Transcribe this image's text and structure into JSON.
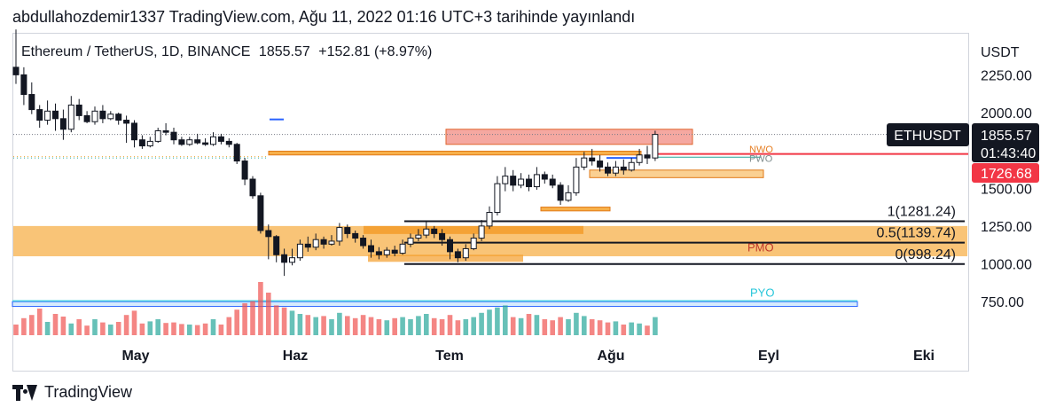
{
  "caption": "abdullahozdemir1337 TradingView.com, Ağu 11, 2022 01:16 UTC+3 tarihinde yayınlandı",
  "legend": {
    "symbol": "Ethereum / TetherUS, 1D, BINANCE",
    "last": "1855.57",
    "change": "+152.81 (+8.97%)"
  },
  "price_axis": {
    "currency": "USDT",
    "ticks": [
      "2250.00",
      "2000.00",
      "1750.00",
      "1500.00",
      "1250.00",
      "1000.00",
      "750.00"
    ]
  },
  "time_axis": {
    "labels": [
      "May",
      "Haz",
      "Tem",
      "Ağu",
      "Eyl",
      "Eki"
    ]
  },
  "price_tags": {
    "ticker": "ETHUSDT",
    "last": "1855.57",
    "countdown": "01:43:40",
    "red_level": "1726.68"
  },
  "fib_labels": [
    "1(1281.24)",
    "0.5(1139.74)",
    "0(998.24)"
  ],
  "zone_labels": {
    "pmo": "PMO",
    "pyo": "PYO",
    "nwo": "NWO",
    "pwo": "PWO"
  },
  "brand": {
    "name": "TradingView",
    "logo": "tradingview-logo-icon"
  },
  "colors": {
    "up": "#26a69a",
    "down": "#131722",
    "volume_up": "#26a69a",
    "volume_down": "#ef5350",
    "orange_zone": "#f7b04a",
    "pink_zone": "#f28b82",
    "red_line": "#f23645",
    "blue": "#2962ff"
  },
  "chart_data": {
    "type": "candlestick",
    "symbol": "ETHUSDT",
    "exchange": "BINANCE",
    "interval": "1D",
    "ylim": [
      700,
      2370
    ],
    "last_price": 1855.57,
    "horizontal_levels": [
      {
        "name": "fib-1",
        "value": 1281.24
      },
      {
        "name": "fib-0.5",
        "value": 1139.74
      },
      {
        "name": "fib-0",
        "value": 998.24
      },
      {
        "name": "red-line",
        "value": 1726.68
      }
    ],
    "zones": [
      {
        "name": "pmo",
        "from": 1050,
        "to": 1250
      },
      {
        "name": "pink",
        "from": 1790,
        "to": 1890
      },
      {
        "name": "resistance-bar",
        "from": 1720,
        "to": 1745
      },
      {
        "name": "pwo-bar",
        "from": 1570,
        "to": 1620
      },
      {
        "name": "small-bar",
        "from": 1350,
        "to": 1375
      },
      {
        "name": "pyo",
        "from": 718,
        "to": 750
      }
    ],
    "candles": [
      [
        2300,
        2250,
        2550,
        2190
      ],
      [
        2250,
        2120,
        2300,
        2050
      ],
      [
        2120,
        2020,
        2200,
        1990
      ],
      [
        2020,
        1950,
        2050,
        1900
      ],
      [
        1950,
        2010,
        2080,
        1920
      ],
      [
        2010,
        1960,
        2060,
        1880
      ],
      [
        1960,
        1890,
        2020,
        1820
      ],
      [
        1890,
        2050,
        2110,
        1870
      ],
      [
        2050,
        1980,
        2090,
        1950
      ],
      [
        1980,
        1940,
        2010,
        1930
      ],
      [
        1940,
        2010,
        2040,
        1920
      ],
      [
        2010,
        1960,
        2050,
        1930
      ],
      [
        1960,
        1990,
        2010,
        1950
      ],
      [
        1990,
        1950,
        2000,
        1920
      ],
      [
        1950,
        1930,
        1980,
        1800
      ],
      [
        1930,
        1820,
        1950,
        1770
      ],
      [
        1820,
        1780,
        1850,
        1760
      ],
      [
        1780,
        1810,
        1840,
        1770
      ],
      [
        1810,
        1880,
        1900,
        1800
      ],
      [
        1880,
        1870,
        1930,
        1850
      ],
      [
        1870,
        1820,
        1900,
        1790
      ],
      [
        1820,
        1790,
        1840,
        1780
      ],
      [
        1790,
        1820,
        1840,
        1780
      ],
      [
        1820,
        1800,
        1860,
        1790
      ],
      [
        1800,
        1790,
        1830,
        1780
      ],
      [
        1790,
        1840,
        1870,
        1780
      ],
      [
        1840,
        1810,
        1860,
        1790
      ],
      [
        1810,
        1790,
        1830,
        1770
      ],
      [
        1790,
        1680,
        1800,
        1660
      ],
      [
        1680,
        1560,
        1700,
        1520
      ],
      [
        1560,
        1450,
        1580,
        1430
      ],
      [
        1450,
        1220,
        1470,
        1200
      ],
      [
        1220,
        1180,
        1260,
        1030
      ],
      [
        1180,
        1060,
        1190,
        1010
      ],
      [
        1060,
        1010,
        1100,
        920
      ],
      [
        1010,
        1040,
        1100,
        990
      ],
      [
        1040,
        1130,
        1160,
        1020
      ],
      [
        1130,
        1110,
        1180,
        1080
      ],
      [
        1110,
        1160,
        1200,
        1090
      ],
      [
        1160,
        1130,
        1180,
        1100
      ],
      [
        1130,
        1150,
        1190,
        1120
      ],
      [
        1150,
        1240,
        1270,
        1120
      ],
      [
        1240,
        1200,
        1260,
        1170
      ],
      [
        1200,
        1170,
        1220,
        1140
      ],
      [
        1170,
        1120,
        1190,
        1100
      ],
      [
        1120,
        1080,
        1160,
        1040
      ],
      [
        1080,
        1060,
        1110,
        1030
      ],
      [
        1060,
        1090,
        1110,
        1040
      ],
      [
        1090,
        1070,
        1120,
        1050
      ],
      [
        1070,
        1130,
        1160,
        1060
      ],
      [
        1130,
        1170,
        1200,
        1110
      ],
      [
        1170,
        1190,
        1230,
        1150
      ],
      [
        1190,
        1230,
        1280,
        1170
      ],
      [
        1230,
        1200,
        1250,
        1170
      ],
      [
        1200,
        1160,
        1230,
        1120
      ],
      [
        1160,
        1080,
        1180,
        1030
      ],
      [
        1080,
        1040,
        1100,
        1010
      ],
      [
        1040,
        1100,
        1130,
        1020
      ],
      [
        1100,
        1170,
        1200,
        1090
      ],
      [
        1170,
        1250,
        1290,
        1150
      ],
      [
        1250,
        1340,
        1380,
        1230
      ],
      [
        1340,
        1530,
        1580,
        1320
      ],
      [
        1530,
        1580,
        1640,
        1480
      ],
      [
        1580,
        1520,
        1620,
        1480
      ],
      [
        1520,
        1560,
        1600,
        1500
      ],
      [
        1560,
        1510,
        1590,
        1480
      ],
      [
        1510,
        1590,
        1640,
        1490
      ],
      [
        1590,
        1560,
        1610,
        1530
      ],
      [
        1560,
        1520,
        1590,
        1500
      ],
      [
        1520,
        1420,
        1540,
        1390
      ],
      [
        1420,
        1470,
        1520,
        1410
      ],
      [
        1470,
        1640,
        1700,
        1450
      ],
      [
        1640,
        1700,
        1740,
        1620
      ],
      [
        1700,
        1680,
        1760,
        1650
      ],
      [
        1680,
        1640,
        1720,
        1610
      ],
      [
        1640,
        1600,
        1670,
        1580
      ],
      [
        1600,
        1640,
        1680,
        1580
      ],
      [
        1640,
        1620,
        1690,
        1590
      ],
      [
        1620,
        1670,
        1700,
        1610
      ],
      [
        1670,
        1720,
        1760,
        1650
      ],
      [
        1720,
        1700,
        1780,
        1660
      ],
      [
        1700,
        1855.57,
        1880,
        1680
      ]
    ],
    "volumes": [
      20,
      32,
      38,
      50,
      25,
      40,
      35,
      22,
      30,
      18,
      30,
      24,
      20,
      25,
      38,
      46,
      22,
      26,
      30,
      23,
      24,
      21,
      20,
      19,
      22,
      30,
      20,
      34,
      48,
      60,
      64,
      100,
      80,
      56,
      52,
      46,
      40,
      38,
      34,
      36,
      30,
      42,
      36,
      32,
      38,
      34,
      30,
      28,
      32,
      34,
      30,
      36,
      40,
      32,
      30,
      38,
      28,
      30,
      34,
      42,
      48,
      52,
      56,
      34,
      32,
      40,
      38,
      30,
      28,
      34,
      30,
      42,
      36,
      30,
      28,
      24,
      26,
      20,
      24,
      22,
      18,
      34
    ]
  }
}
